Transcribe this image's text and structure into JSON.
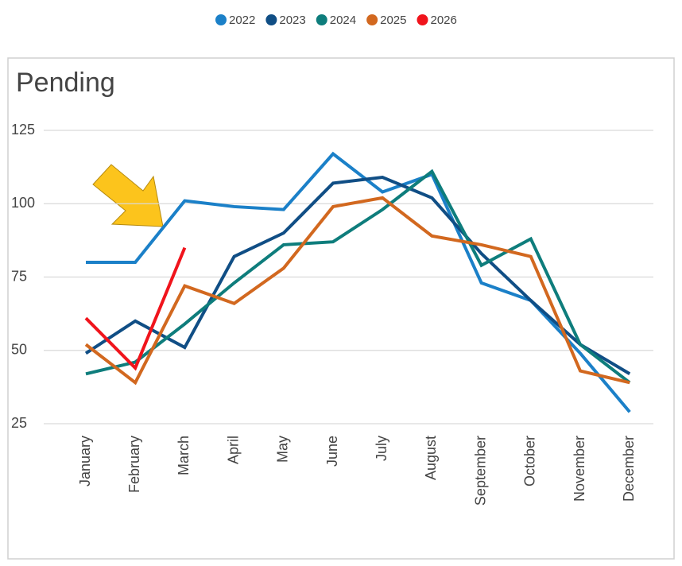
{
  "chart_data": {
    "type": "line",
    "title": "Pending",
    "categories": [
      "January",
      "February",
      "March",
      "April",
      "May",
      "June",
      "July",
      "August",
      "September",
      "October",
      "November",
      "December"
    ],
    "series": [
      {
        "name": "2022",
        "color": "#1b80c8",
        "values": [
          80,
          80,
          101,
          99,
          98,
          117,
          104,
          110,
          73,
          67,
          49,
          29
        ]
      },
      {
        "name": "2023",
        "color": "#104e85",
        "values": [
          49,
          60,
          51,
          82,
          90,
          107,
          109,
          102,
          83,
          67,
          52,
          42
        ]
      },
      {
        "name": "2024",
        "color": "#0e7d7c",
        "values": [
          42,
          46,
          59,
          73,
          86,
          87,
          98,
          111,
          79,
          88,
          52,
          39
        ]
      },
      {
        "name": "2025",
        "color": "#d2681f",
        "values": [
          52,
          39,
          72,
          66,
          78,
          99,
          102,
          89,
          86,
          82,
          43,
          39
        ]
      },
      {
        "name": "2026",
        "color": "#f0141c",
        "values": [
          61,
          44,
          85,
          null,
          null,
          null,
          null,
          null,
          null,
          null,
          null,
          null
        ]
      }
    ],
    "ylim": [
      25,
      125
    ],
    "yticks": [
      25,
      50,
      75,
      100,
      125
    ],
    "grid": true,
    "legend": "top"
  }
}
